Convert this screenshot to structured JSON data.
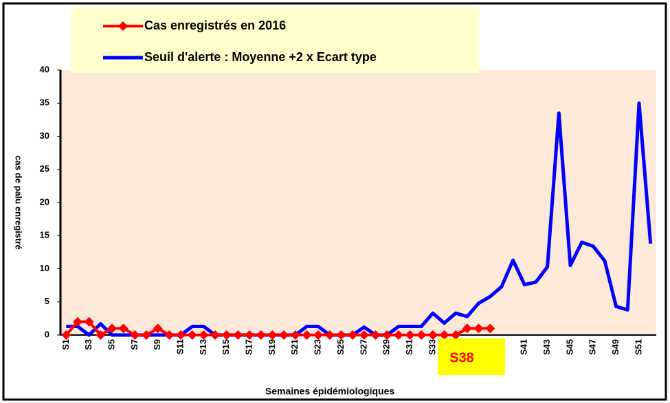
{
  "chart_data": {
    "type": "line",
    "categories": [
      "S1",
      null,
      "S3",
      null,
      "S5",
      null,
      "S7",
      null,
      "S9",
      null,
      "S11",
      null,
      "S13",
      null,
      "S15",
      null,
      "S17",
      null,
      "S19",
      null,
      "S21",
      null,
      "S23",
      null,
      "S25",
      null,
      "S27",
      null,
      "S29",
      null,
      "S31",
      null,
      "S33",
      null,
      null,
      null,
      null,
      null,
      null,
      null,
      "S41",
      null,
      "S43",
      null,
      "S45",
      null,
      "S47",
      null,
      "S49",
      null,
      "S51",
      null
    ],
    "series": [
      {
        "name": "Cas enregistrés en 2016",
        "color": "#ff0000",
        "marker": "diamond",
        "values": [
          0,
          2,
          2,
          0,
          1,
          1,
          0,
          0,
          1,
          0,
          0,
          0,
          0,
          0,
          0,
          0,
          0,
          0,
          0,
          0,
          0,
          0,
          0,
          0,
          0,
          0,
          0,
          0,
          0,
          0,
          0,
          0,
          0,
          0,
          0,
          1,
          1,
          1,
          null,
          null,
          null,
          null,
          null,
          null,
          null,
          null,
          null,
          null,
          null,
          null,
          null,
          null
        ]
      },
      {
        "name": "Seuil d'alerte : Moyenne +2 x Ecart type",
        "color": "#0000ff",
        "values": [
          1.3,
          1.3,
          0,
          1.7,
          0,
          0,
          0,
          0,
          0,
          0,
          0,
          1.3,
          1.3,
          0,
          0,
          0,
          0,
          0,
          0,
          0,
          0,
          1.3,
          1.3,
          0,
          0,
          0,
          1.2,
          0,
          0,
          1.3,
          1.3,
          1.3,
          3.3,
          1.8,
          3.3,
          2.8,
          4.8,
          5.8,
          7.3,
          11.3,
          7.6,
          8,
          10.3,
          33.5,
          10.5,
          14,
          13.4,
          11.2,
          4.3,
          3.8,
          35,
          13.8
        ]
      }
    ],
    "ylim": [
      0,
      40
    ],
    "yticks": [
      0,
      5,
      10,
      15,
      20,
      25,
      30,
      35,
      40
    ],
    "ylabel": "cas de palu enregistré",
    "xlabel": "Semaines épidémiologiques",
    "annotation": "S38",
    "grid": false
  }
}
